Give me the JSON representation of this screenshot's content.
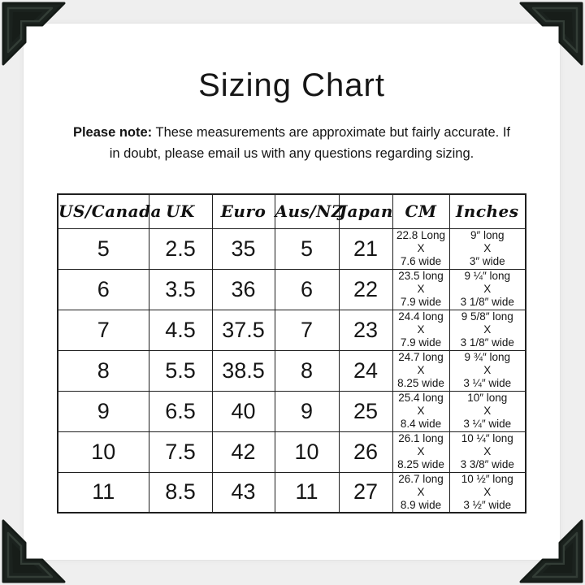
{
  "header": {
    "title": "Sizing Chart",
    "note_label": "Please note:",
    "note_text": "These measurements are approximate but fairly accurate. If in doubt, please email us with any questions regarding sizing."
  },
  "colors": {
    "background": "#efefef",
    "card": "#ffffff",
    "text": "#1a1a1a",
    "table_border": "#1f1f1f",
    "photo_corner_dark": "#1b221e",
    "photo_corner_light": "#2b342e"
  },
  "decor": {
    "photo_corner_icon": "black beveled photo-mount corner, one in each of the four corners"
  },
  "chart_data": {
    "type": "table",
    "title": "Sizing Chart",
    "columns": [
      "US/Canada",
      "UK",
      "Euro",
      "Aus/NZ",
      "Japan",
      "CM",
      "Inches"
    ],
    "rows": [
      [
        "5",
        "2.5",
        "35",
        "5",
        "21",
        "22.8 Long\nX\n7.6 wide",
        "9″ long\nX\n3″ wide"
      ],
      [
        "6",
        "3.5",
        "36",
        "6",
        "22",
        "23.5 long\nX\n7.9 wide",
        "9 ¼″ long\nX\n3 1/8″ wide"
      ],
      [
        "7",
        "4.5",
        "37.5",
        "7",
        "23",
        "24.4 long\nX\n7.9 wide",
        "9 5/8″ long\nX\n3 1/8″ wide"
      ],
      [
        "8",
        "5.5",
        "38.5",
        "8",
        "24",
        "24.7 long\nX\n8.25 wide",
        "9 ¾″ long\nX\n3 ¼″ wide"
      ],
      [
        "9",
        "6.5",
        "40",
        "9",
        "25",
        "25.4 long\nX\n8.4 wide",
        "10″ long\nX\n3 ¼″ wide"
      ],
      [
        "10",
        "7.5",
        "42",
        "10",
        "26",
        "26.1 long\nX\n8.25 wide",
        "10 ¼″ long\nX\n3 3/8″ wide"
      ],
      [
        "11",
        "8.5",
        "43",
        "11",
        "27",
        "26.7 long\nX\n8.9 wide",
        "10 ½″ long\nX\n3 ½″ wide"
      ]
    ]
  }
}
